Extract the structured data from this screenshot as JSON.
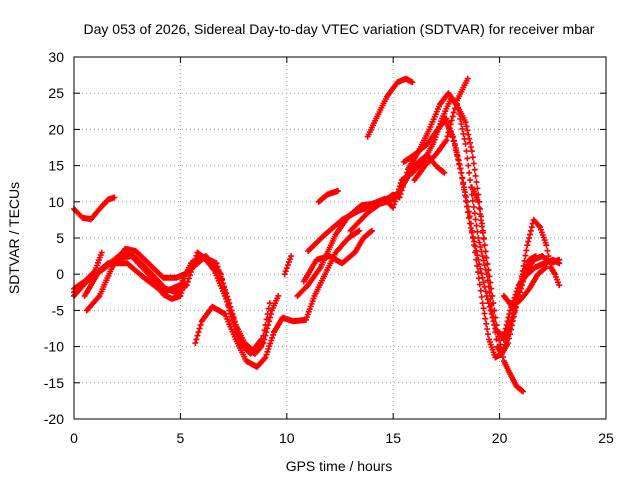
{
  "chart_data": {
    "type": "scatter",
    "title": "Day 053 of 2026, Sidereal Day-to-day VTEC variation (SDTVAR) for receiver mbar",
    "xlabel": "GPS time / hours",
    "ylabel": "SDTVAR / TECUs",
    "xlim": [
      0,
      25
    ],
    "ylim": [
      -20,
      30
    ],
    "xticks": [
      0,
      5,
      10,
      15,
      20,
      25
    ],
    "yticks": [
      -20,
      -15,
      -10,
      -5,
      0,
      5,
      10,
      15,
      20,
      25,
      30
    ],
    "grid": true,
    "marker_color": "#ff0000",
    "series": [
      {
        "values": [
          [
            0,
            9
          ],
          [
            0.4,
            7.8
          ],
          [
            0.8,
            7.6
          ],
          [
            1.2,
            9
          ],
          [
            1.6,
            10.3
          ],
          [
            1.9,
            10.6
          ]
        ]
      },
      {
        "values": [
          [
            0,
            -2
          ],
          [
            0.5,
            -1
          ],
          [
            1,
            0.5
          ],
          [
            1.3,
            3
          ]
        ]
      },
      {
        "values": [
          [
            0,
            -3
          ],
          [
            0.6,
            -1
          ],
          [
            1.5,
            1
          ],
          [
            2.3,
            3
          ],
          [
            2.8,
            2.5
          ],
          [
            3.5,
            0.5
          ],
          [
            4.3,
            -2
          ],
          [
            4.8,
            -2.5
          ],
          [
            5.3,
            -1.5
          ],
          [
            5.8,
            3
          ],
          [
            6.2,
            2
          ],
          [
            6.6,
            0.5
          ],
          [
            7.1,
            -3
          ],
          [
            7.6,
            -7
          ],
          [
            8.1,
            -10
          ],
          [
            8.5,
            -11
          ],
          [
            8.8,
            -10
          ],
          [
            9.0,
            -7
          ],
          [
            9.2,
            -4
          ]
        ]
      },
      {
        "values": [
          [
            0,
            -2.5
          ],
          [
            0.8,
            -0.5
          ],
          [
            1.6,
            1.5
          ],
          [
            2.5,
            1.5
          ],
          [
            3.3,
            -0.5
          ],
          [
            4.2,
            -2.5
          ],
          [
            5.0,
            -1.5
          ],
          [
            5.5,
            1.5
          ],
          [
            6.0,
            2.5
          ],
          [
            6.7,
            1.5
          ],
          [
            7.3,
            -4
          ],
          [
            7.8,
            -9
          ],
          [
            8.4,
            -10.5
          ],
          [
            8.9,
            -9.5
          ],
          [
            9.3,
            -5
          ],
          [
            9.6,
            -3
          ]
        ]
      },
      {
        "values": [
          [
            0.6,
            -5
          ],
          [
            1.2,
            -3
          ],
          [
            1.8,
            1
          ],
          [
            2.4,
            3.5
          ],
          [
            2.9,
            3.2
          ],
          [
            3.5,
            1.5
          ],
          [
            4.2,
            -0.5
          ],
          [
            4.8,
            -0.5
          ],
          [
            5.2,
            0
          ],
          [
            5.6,
            1
          ],
          [
            6.2,
            2.5
          ],
          [
            6.9,
            0
          ],
          [
            7.3,
            -5
          ],
          [
            7.8,
            -9.5
          ],
          [
            8.3,
            -11
          ],
          [
            8.8,
            -9
          ]
        ]
      },
      {
        "values": [
          [
            0.5,
            -3
          ],
          [
            1.2,
            0.5
          ],
          [
            2.0,
            2.2
          ],
          [
            2.7,
            2.5
          ],
          [
            3.5,
            0
          ],
          [
            4.2,
            -2.8
          ],
          [
            4.6,
            -3.4
          ],
          [
            5.0,
            -3
          ],
          [
            5.2,
            -1
          ]
        ]
      },
      {
        "values": [
          [
            5.7,
            -9.5
          ],
          [
            6.0,
            -6.5
          ],
          [
            6.5,
            -4.5
          ],
          [
            7.1,
            -5.5
          ],
          [
            7.6,
            -9
          ],
          [
            8.1,
            -12
          ],
          [
            8.6,
            -12.8
          ],
          [
            9.0,
            -11.5
          ],
          [
            9.4,
            -8
          ],
          [
            9.8,
            -6
          ],
          [
            10.3,
            -6.5
          ],
          [
            10.9,
            -6.3
          ],
          [
            11.3,
            -3
          ],
          [
            11.8,
            0
          ],
          [
            12.3,
            3
          ],
          [
            12.9,
            5
          ],
          [
            13.4,
            6
          ]
        ]
      },
      {
        "values": [
          [
            9.9,
            0
          ],
          [
            10.2,
            2.5
          ]
        ]
      },
      {
        "values": [
          [
            10.8,
            -1
          ],
          [
            11.4,
            2
          ],
          [
            12.0,
            2.5
          ],
          [
            12.6,
            1.5
          ],
          [
            13.2,
            3
          ],
          [
            13.6,
            5
          ],
          [
            14.0,
            6
          ]
        ]
      },
      {
        "values": [
          [
            11.0,
            3.2
          ],
          [
            11.8,
            5.5
          ],
          [
            12.6,
            7.5
          ],
          [
            13.4,
            8.8
          ],
          [
            14.1,
            9.5
          ],
          [
            14.7,
            10
          ],
          [
            15.1,
            10.6
          ],
          [
            15.5,
            12.5
          ],
          [
            16.0,
            15
          ],
          [
            16.6,
            16.5
          ],
          [
            17.0,
            15
          ],
          [
            17.4,
            14
          ]
        ]
      },
      {
        "values": [
          [
            10.5,
            -3
          ],
          [
            11.0,
            -1.5
          ],
          [
            11.6,
            1
          ],
          [
            12.3,
            5.5
          ],
          [
            12.9,
            8
          ],
          [
            13.5,
            9.5
          ],
          [
            14.0,
            9.7
          ],
          [
            14.6,
            10.4
          ],
          [
            15.0,
            9.2
          ],
          [
            15.4,
            13
          ],
          [
            15.9,
            14
          ],
          [
            16.4,
            15.4
          ],
          [
            16.9,
            18.2
          ],
          [
            17.3,
            21.5
          ],
          [
            17.7,
            24.2
          ],
          [
            18.0,
            23.5
          ],
          [
            18.4,
            18
          ],
          [
            18.7,
            11
          ],
          [
            19.0,
            5
          ],
          [
            19.4,
            0
          ],
          [
            19.7,
            -6
          ],
          [
            19.9,
            -10
          ],
          [
            20.1,
            -11
          ],
          [
            20.4,
            -9.5
          ],
          [
            20.8,
            -4
          ],
          [
            21.1,
            0
          ],
          [
            21.4,
            2
          ],
          [
            21.7,
            2.5
          ]
        ]
      },
      {
        "values": [
          [
            11.5,
            10
          ],
          [
            11.9,
            11
          ],
          [
            12.4,
            11.5
          ]
        ]
      },
      {
        "values": [
          [
            13.8,
            19
          ],
          [
            14.2,
            21.5
          ],
          [
            14.7,
            24.5
          ],
          [
            15.2,
            26.5
          ],
          [
            15.6,
            27
          ],
          [
            15.9,
            26.5
          ]
        ]
      },
      {
        "values": [
          [
            13.0,
            6
          ],
          [
            13.8,
            8.5
          ],
          [
            14.5,
            10
          ],
          [
            15.0,
            11
          ],
          [
            15.3,
            10.6
          ],
          [
            15.7,
            14.5
          ],
          [
            16.2,
            17
          ],
          [
            16.7,
            20
          ],
          [
            17.2,
            23.5
          ],
          [
            17.6,
            25
          ],
          [
            18.0,
            23.3
          ],
          [
            18.4,
            21
          ],
          [
            18.7,
            17
          ],
          [
            19.0,
            11
          ],
          [
            19.3,
            4
          ],
          [
            19.6,
            -2
          ],
          [
            19.9,
            -8
          ],
          [
            20.2,
            -12
          ],
          [
            20.5,
            -13.8
          ],
          [
            20.8,
            -15.5
          ],
          [
            21.1,
            -16.2
          ]
        ]
      },
      {
        "values": [
          [
            16.0,
            13
          ],
          [
            16.5,
            15
          ],
          [
            17.0,
            16.5
          ],
          [
            17.5,
            18.5
          ],
          [
            18.0,
            24
          ],
          [
            18.5,
            27
          ]
        ]
      },
      {
        "values": [
          [
            15.5,
            15.5
          ],
          [
            16.0,
            16.5
          ],
          [
            16.6,
            18
          ],
          [
            17.1,
            20
          ],
          [
            17.5,
            21.5
          ],
          [
            17.9,
            18
          ],
          [
            18.2,
            14
          ],
          [
            18.6,
            7
          ],
          [
            19.0,
            2
          ],
          [
            19.4,
            -3
          ],
          [
            19.8,
            -7.5
          ],
          [
            20.2,
            -9
          ],
          [
            20.6,
            -6
          ],
          [
            21.0,
            -1
          ],
          [
            21.3,
            4
          ],
          [
            21.6,
            7.5
          ],
          [
            21.9,
            6.5
          ],
          [
            22.2,
            4
          ],
          [
            22.4,
            1
          ],
          [
            22.6,
            0
          ],
          [
            22.8,
            -1.5
          ]
        ]
      },
      {
        "values": [
          [
            17.4,
            21.5
          ],
          [
            17.8,
            19
          ],
          [
            18.2,
            14
          ],
          [
            18.6,
            8
          ],
          [
            18.9,
            2
          ],
          [
            19.2,
            -4
          ],
          [
            19.5,
            -9
          ],
          [
            19.8,
            -11.5
          ],
          [
            20.1,
            -11
          ],
          [
            20.4,
            -8.5
          ],
          [
            20.8,
            -4
          ],
          [
            21.2,
            0
          ],
          [
            21.6,
            2
          ],
          [
            22.0,
            2.5
          ],
          [
            22.4,
            1.5
          ],
          [
            22.8,
            2
          ]
        ]
      },
      {
        "values": [
          [
            18.7,
            12
          ],
          [
            19.0,
            10
          ],
          [
            19.3,
            4
          ],
          [
            19.6,
            -2
          ],
          [
            19.9,
            -8
          ],
          [
            20.2,
            -8.5
          ],
          [
            20.5,
            -5
          ],
          [
            20.9,
            -1.5
          ],
          [
            21.3,
            0
          ],
          [
            21.7,
            1
          ],
          [
            22.1,
            1.5
          ],
          [
            22.5,
            2
          ],
          [
            22.8,
            1.5
          ]
        ]
      },
      {
        "values": [
          [
            20.2,
            -3
          ],
          [
            20.6,
            -4.5
          ],
          [
            21.0,
            -3.5
          ],
          [
            21.4,
            -2
          ],
          [
            21.8,
            0
          ],
          [
            22.2,
            1
          ]
        ]
      }
    ]
  }
}
